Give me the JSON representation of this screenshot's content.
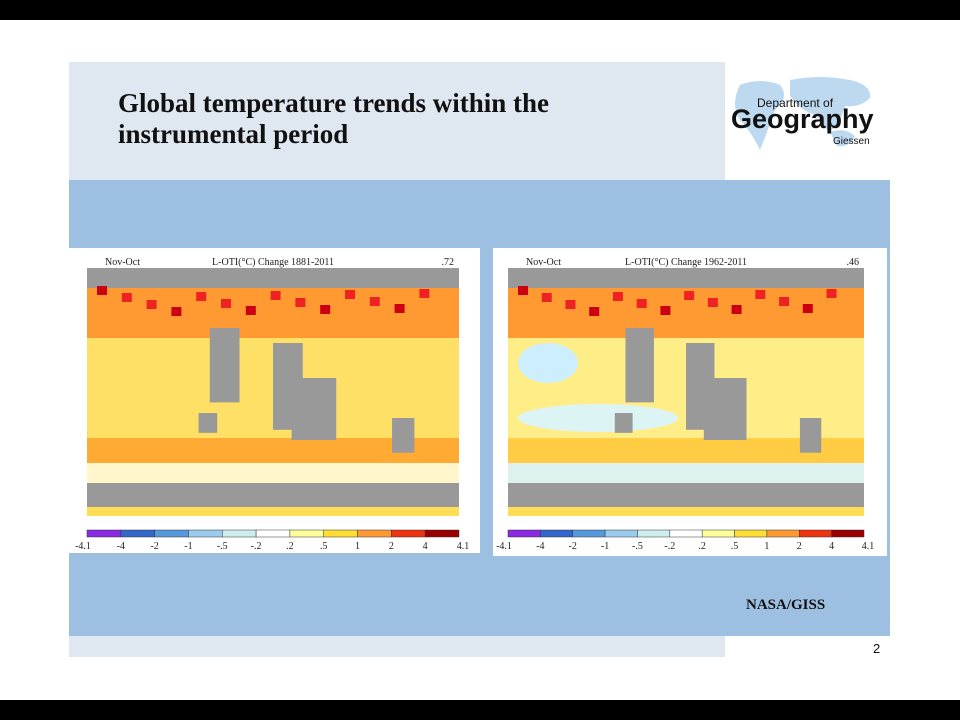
{
  "slide": {
    "title_line1": "Global temperature trends within the",
    "title_line2": "instrumental period",
    "logo": {
      "top": "Department of",
      "main": "Geography",
      "bottom": "Giessen"
    },
    "maps": [
      {
        "season": "Nov-Oct",
        "heading": "L-OTI(°C) Change 1881-2011",
        "mean": ".72",
        "scale": [
          "-4.1",
          "-4",
          "-2",
          "-1",
          "-.5",
          "-.2",
          ".2",
          ".5",
          "1",
          "2",
          "4",
          "4.1"
        ]
      },
      {
        "season": "Nov-Oct",
        "heading": "L-OTI(°C) Change 1962-2011",
        "mean": ".46",
        "scale": [
          "-4.1",
          "-4",
          "-2",
          "-1",
          "-.5",
          "-.2",
          ".2",
          ".5",
          "1",
          "2",
          "4",
          "4.1"
        ]
      }
    ],
    "source": "NASA/GISS",
    "page_number": "2"
  }
}
